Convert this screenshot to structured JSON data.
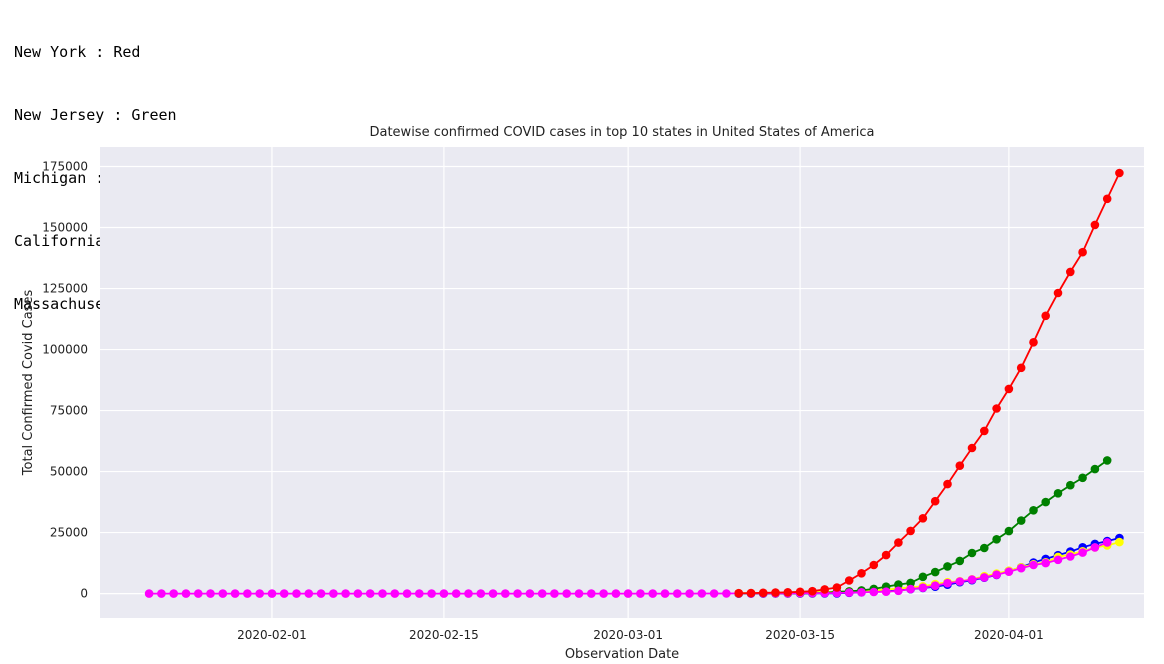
{
  "legend_text": [
    {
      "label": "New York : Red"
    },
    {
      "label": "New Jersey : Green"
    },
    {
      "label": "Michigan : Blue"
    },
    {
      "label": "California : Yellow"
    },
    {
      "label": "Massachusetts : Magenta"
    }
  ],
  "chart_data": {
    "type": "line",
    "title": "Datewise confirmed COVID cases in top 10 states in United States of America",
    "xlabel": "Observation Date",
    "ylabel": "Total Confirmed Covid Cases",
    "x_start": "2020-01-22",
    "x_end": "2020-04-09",
    "xlim": [
      "2020-01-18",
      "2020-04-12"
    ],
    "ylim": [
      -10000,
      183000
    ],
    "x_ticks": [
      "2020-02-01",
      "2020-02-15",
      "2020-03-01",
      "2020-03-15",
      "2020-04-01"
    ],
    "y_ticks": [
      0,
      25000,
      50000,
      75000,
      100000,
      125000,
      150000,
      175000
    ],
    "grid": true,
    "background": "#eaeaf2",
    "series": [
      {
        "name": "Michigan",
        "color": "#0000ff",
        "points": [
          [
            "2020-03-10",
            2
          ],
          [
            "2020-03-11",
            2
          ],
          [
            "2020-03-12",
            12
          ],
          [
            "2020-03-13",
            25
          ],
          [
            "2020-03-14",
            33
          ],
          [
            "2020-03-15",
            53
          ],
          [
            "2020-03-16",
            65
          ],
          [
            "2020-03-17",
            83
          ],
          [
            "2020-03-18",
            80
          ],
          [
            "2020-03-19",
            336
          ],
          [
            "2020-03-20",
            549
          ],
          [
            "2020-03-21",
            787
          ],
          [
            "2020-03-22",
            1035
          ],
          [
            "2020-03-23",
            1329
          ],
          [
            "2020-03-24",
            1793
          ],
          [
            "2020-03-25",
            2296
          ],
          [
            "2020-03-26",
            2845
          ],
          [
            "2020-03-27",
            3657
          ],
          [
            "2020-03-28",
            4650
          ],
          [
            "2020-03-29",
            5488
          ],
          [
            "2020-03-30",
            6498
          ],
          [
            "2020-03-31",
            7615
          ],
          [
            "2020-04-01",
            9315
          ],
          [
            "2020-04-02",
            10791
          ],
          [
            "2020-04-03",
            12744
          ],
          [
            "2020-04-04",
            14225
          ],
          [
            "2020-04-05",
            15718
          ],
          [
            "2020-04-06",
            17221
          ],
          [
            "2020-04-07",
            18970
          ],
          [
            "2020-04-08",
            20346
          ],
          [
            "2020-04-09",
            21504
          ],
          [
            "2020-04-10",
            22783
          ]
        ]
      },
      {
        "name": "California",
        "color": "#ffff00",
        "points": [
          [
            "2020-03-10",
            144
          ],
          [
            "2020-03-11",
            177
          ],
          [
            "2020-03-12",
            221
          ],
          [
            "2020-03-13",
            282
          ],
          [
            "2020-03-14",
            340
          ],
          [
            "2020-03-15",
            426
          ],
          [
            "2020-03-16",
            557
          ],
          [
            "2020-03-17",
            698
          ],
          [
            "2020-03-18",
            751
          ],
          [
            "2020-03-19",
            952
          ],
          [
            "2020-03-20",
            1177
          ],
          [
            "2020-03-21",
            1364
          ],
          [
            "2020-03-22",
            1642
          ],
          [
            "2020-03-23",
            2108
          ],
          [
            "2020-03-24",
            2538
          ],
          [
            "2020-03-25",
            2998
          ],
          [
            "2020-03-26",
            3899
          ],
          [
            "2020-03-27",
            4657
          ],
          [
            "2020-03-28",
            5095
          ],
          [
            "2020-03-29",
            5852
          ],
          [
            "2020-03-30",
            7138
          ],
          [
            "2020-03-31",
            8210
          ],
          [
            "2020-04-01",
            9399
          ],
          [
            "2020-04-02",
            10773
          ],
          [
            "2020-04-03",
            12004
          ],
          [
            "2020-04-04",
            12837
          ],
          [
            "2020-04-05",
            15034
          ],
          [
            "2020-04-06",
            16019
          ],
          [
            "2020-04-07",
            17351
          ],
          [
            "2020-04-08",
            18897
          ],
          [
            "2020-04-09",
            19710
          ],
          [
            "2020-04-10",
            21081
          ]
        ]
      },
      {
        "name": "New Jersey",
        "color": "#008000",
        "points": [
          [
            "2020-03-10",
            15
          ],
          [
            "2020-03-11",
            23
          ],
          [
            "2020-03-12",
            29
          ],
          [
            "2020-03-13",
            69
          ],
          [
            "2020-03-14",
            69
          ],
          [
            "2020-03-15",
            98
          ],
          [
            "2020-03-16",
            178
          ],
          [
            "2020-03-17",
            267
          ],
          [
            "2020-03-18",
            742
          ],
          [
            "2020-03-19",
            890
          ],
          [
            "2020-03-20",
            1327
          ],
          [
            "2020-03-21",
            1914
          ],
          [
            "2020-03-22",
            2844
          ],
          [
            "2020-03-23",
            3675
          ],
          [
            "2020-03-24",
            4402
          ],
          [
            "2020-03-25",
            6876
          ],
          [
            "2020-03-26",
            8825
          ],
          [
            "2020-03-27",
            11124
          ],
          [
            "2020-03-28",
            13386
          ],
          [
            "2020-03-29",
            16636
          ],
          [
            "2020-03-30",
            18696
          ],
          [
            "2020-03-31",
            22255
          ],
          [
            "2020-04-01",
            25590
          ],
          [
            "2020-04-02",
            29895
          ],
          [
            "2020-04-03",
            34124
          ],
          [
            "2020-04-04",
            37505
          ],
          [
            "2020-04-05",
            41090
          ],
          [
            "2020-04-06",
            44416
          ],
          [
            "2020-04-07",
            47437
          ],
          [
            "2020-04-08",
            51027
          ],
          [
            "2020-04-09",
            54588
          ]
        ]
      },
      {
        "name": "Massachusetts",
        "color": "#ff00ff",
        "points": [
          [
            "2020-01-22",
            0
          ],
          [
            "2020-01-23",
            0
          ],
          [
            "2020-01-24",
            0
          ],
          [
            "2020-01-25",
            0
          ],
          [
            "2020-01-26",
            0
          ],
          [
            "2020-01-27",
            0
          ],
          [
            "2020-01-28",
            0
          ],
          [
            "2020-01-29",
            0
          ],
          [
            "2020-01-30",
            0
          ],
          [
            "2020-01-31",
            0
          ],
          [
            "2020-02-01",
            1
          ],
          [
            "2020-02-02",
            1
          ],
          [
            "2020-02-03",
            1
          ],
          [
            "2020-02-04",
            1
          ],
          [
            "2020-02-05",
            1
          ],
          [
            "2020-02-06",
            1
          ],
          [
            "2020-02-07",
            1
          ],
          [
            "2020-02-08",
            1
          ],
          [
            "2020-02-09",
            1
          ],
          [
            "2020-02-10",
            1
          ],
          [
            "2020-02-11",
            1
          ],
          [
            "2020-02-12",
            1
          ],
          [
            "2020-02-13",
            1
          ],
          [
            "2020-02-14",
            1
          ],
          [
            "2020-02-15",
            1
          ],
          [
            "2020-02-16",
            1
          ],
          [
            "2020-02-17",
            1
          ],
          [
            "2020-02-18",
            1
          ],
          [
            "2020-02-19",
            1
          ],
          [
            "2020-02-20",
            1
          ],
          [
            "2020-02-21",
            1
          ],
          [
            "2020-02-22",
            1
          ],
          [
            "2020-02-23",
            1
          ],
          [
            "2020-02-24",
            1
          ],
          [
            "2020-02-25",
            1
          ],
          [
            "2020-02-26",
            1
          ],
          [
            "2020-02-27",
            1
          ],
          [
            "2020-02-28",
            1
          ],
          [
            "2020-02-29",
            1
          ],
          [
            "2020-03-01",
            1
          ],
          [
            "2020-03-02",
            1
          ],
          [
            "2020-03-03",
            2
          ],
          [
            "2020-03-04",
            2
          ],
          [
            "2020-03-05",
            8
          ],
          [
            "2020-03-06",
            8
          ],
          [
            "2020-03-07",
            28
          ],
          [
            "2020-03-08",
            28
          ],
          [
            "2020-03-09",
            41
          ],
          [
            "2020-03-10",
            92
          ],
          [
            "2020-03-11",
            95
          ],
          [
            "2020-03-12",
            108
          ],
          [
            "2020-03-13",
            123
          ],
          [
            "2020-03-14",
            138
          ],
          [
            "2020-03-15",
            164
          ],
          [
            "2020-03-16",
            197
          ],
          [
            "2020-03-17",
            218
          ],
          [
            "2020-03-18",
            256
          ],
          [
            "2020-03-19",
            413
          ],
          [
            "2020-03-20",
            525
          ],
          [
            "2020-03-21",
            646
          ],
          [
            "2020-03-22",
            777
          ],
          [
            "2020-03-23",
            1159
          ],
          [
            "2020-03-24",
            1838
          ],
          [
            "2020-03-25",
            2417
          ],
          [
            "2020-03-26",
            3240
          ],
          [
            "2020-03-27",
            4257
          ],
          [
            "2020-03-28",
            4955
          ],
          [
            "2020-03-29",
            5752
          ],
          [
            "2020-03-30",
            6620
          ],
          [
            "2020-03-31",
            7738
          ],
          [
            "2020-04-01",
            8966
          ],
          [
            "2020-04-02",
            10402
          ],
          [
            "2020-04-03",
            11736
          ],
          [
            "2020-04-04",
            12500
          ],
          [
            "2020-04-05",
            13837
          ],
          [
            "2020-04-06",
            15202
          ],
          [
            "2020-04-07",
            16790
          ],
          [
            "2020-04-08",
            18941
          ],
          [
            "2020-04-09",
            20974
          ]
        ]
      },
      {
        "name": "New York",
        "color": "#ff0000",
        "points": [
          [
            "2020-03-10",
            173
          ],
          [
            "2020-03-11",
            220
          ],
          [
            "2020-03-12",
            328
          ],
          [
            "2020-03-13",
            421
          ],
          [
            "2020-03-14",
            525
          ],
          [
            "2020-03-15",
            732
          ],
          [
            "2020-03-16",
            967
          ],
          [
            "2020-03-17",
            1706
          ],
          [
            "2020-03-18",
            2495
          ],
          [
            "2020-03-19",
            5365
          ],
          [
            "2020-03-20",
            8310
          ],
          [
            "2020-03-21",
            11710
          ],
          [
            "2020-03-22",
            15793
          ],
          [
            "2020-03-23",
            20884
          ],
          [
            "2020-03-24",
            25681
          ],
          [
            "2020-03-25",
            30841
          ],
          [
            "2020-03-26",
            37877
          ],
          [
            "2020-03-27",
            44876
          ],
          [
            "2020-03-28",
            52410
          ],
          [
            "2020-03-29",
            59648
          ],
          [
            "2020-03-30",
            66663
          ],
          [
            "2020-03-31",
            75833
          ],
          [
            "2020-04-01",
            83889
          ],
          [
            "2020-04-02",
            92506
          ],
          [
            "2020-04-03",
            102987
          ],
          [
            "2020-04-04",
            113833
          ],
          [
            "2020-04-05",
            123160
          ],
          [
            "2020-04-06",
            131815
          ],
          [
            "2020-04-07",
            139875
          ],
          [
            "2020-04-08",
            151061
          ],
          [
            "2020-04-09",
            161779
          ],
          [
            "2020-04-10",
            172348
          ]
        ]
      }
    ]
  }
}
